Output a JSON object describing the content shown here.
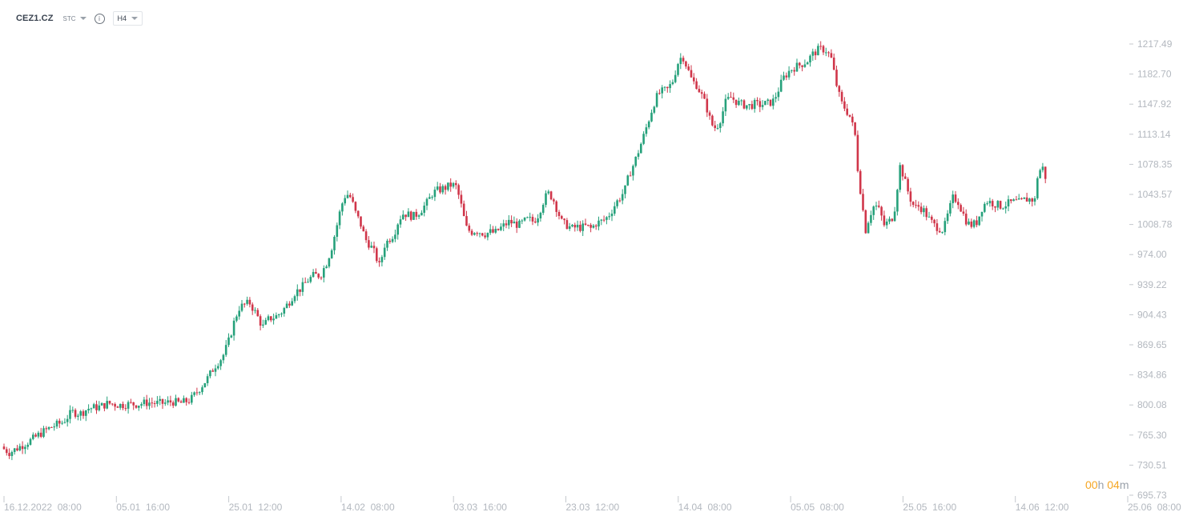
{
  "toolbar": {
    "symbol": "CEZ1.CZ",
    "mode": "STC",
    "timeframe": "H4"
  },
  "countdown": {
    "hours": "00",
    "h": "h",
    "minutes": "04",
    "m": "m"
  },
  "colors": {
    "up": "#26a17b",
    "down": "#d0364a",
    "axis_text": "#b3b8bf",
    "tick": "#c5c9ce"
  },
  "chart_data": {
    "type": "candlestick",
    "y_ticks": [
      "1217.49",
      "1182.70",
      "1147.92",
      "1113.14",
      "1078.35",
      "1043.57",
      "1008.78",
      "974.00",
      "939.22",
      "904.43",
      "869.65",
      "834.86",
      "800.08",
      "765.30",
      "730.51",
      "695.73"
    ],
    "ylim": [
      695.73,
      1217.49
    ],
    "x_ticks": [
      "16.12.2022  08:00",
      "05.01  16:00",
      "25.01  12:00",
      "14.02  08:00",
      "03.03  16:00",
      "23.03  12:00",
      "14.04  08:00",
      "05.05  08:00",
      "25.05  16:00",
      "14.06  12:00",
      "25.06  08:00"
    ],
    "close_path": [
      [
        0,
        752
      ],
      [
        12,
        745
      ],
      [
        25,
        752
      ],
      [
        40,
        760
      ],
      [
        52,
        768
      ],
      [
        65,
        775
      ],
      [
        78,
        780
      ],
      [
        90,
        792
      ],
      [
        100,
        790
      ],
      [
        110,
        796
      ],
      [
        125,
        798
      ],
      [
        135,
        802
      ],
      [
        150,
        800
      ],
      [
        160,
        801
      ],
      [
        172,
        801
      ],
      [
        185,
        803
      ],
      [
        195,
        802
      ],
      [
        205,
        802
      ],
      [
        215,
        804
      ],
      [
        225,
        802
      ],
      [
        238,
        806
      ],
      [
        250,
        820
      ],
      [
        260,
        832
      ],
      [
        268,
        845
      ],
      [
        278,
        856
      ],
      [
        285,
        872
      ],
      [
        292,
        895
      ],
      [
        298,
        912
      ],
      [
        305,
        916
      ],
      [
        312,
        918
      ],
      [
        320,
        905
      ],
      [
        328,
        890
      ],
      [
        336,
        900
      ],
      [
        344,
        902
      ],
      [
        352,
        908
      ],
      [
        360,
        918
      ],
      [
        368,
        930
      ],
      [
        376,
        935
      ],
      [
        384,
        944
      ],
      [
        392,
        950
      ],
      [
        400,
        950
      ],
      [
        408,
        965
      ],
      [
        414,
        982
      ],
      [
        420,
        1005
      ],
      [
        426,
        1030
      ],
      [
        432,
        1045
      ],
      [
        438,
        1040
      ],
      [
        444,
        1022
      ],
      [
        450,
        1010
      ],
      [
        456,
        992
      ],
      [
        462,
        985
      ],
      [
        468,
        975
      ],
      [
        474,
        960
      ],
      [
        480,
        985
      ],
      [
        486,
        992
      ],
      [
        492,
        998
      ],
      [
        498,
        1015
      ],
      [
        504,
        1022
      ],
      [
        510,
        1020
      ],
      [
        516,
        1018
      ],
      [
        522,
        1022
      ],
      [
        528,
        1028
      ],
      [
        534,
        1035
      ],
      [
        540,
        1045
      ],
      [
        546,
        1048
      ],
      [
        552,
        1050
      ],
      [
        558,
        1052
      ],
      [
        564,
        1055
      ],
      [
        570,
        1052
      ],
      [
        576,
        1030
      ],
      [
        582,
        1005
      ],
      [
        588,
        1000
      ],
      [
        594,
        1002
      ],
      [
        600,
        1000
      ],
      [
        606,
        998
      ],
      [
        612,
        1000
      ],
      [
        618,
        999
      ],
      [
        624,
        1004
      ],
      [
        630,
        1008
      ],
      [
        636,
        1012
      ],
      [
        642,
        1010
      ],
      [
        648,
        1008
      ],
      [
        654,
        1012
      ],
      [
        660,
        1015
      ],
      [
        666,
        1012
      ],
      [
        672,
        1020
      ],
      [
        678,
        1035
      ],
      [
        684,
        1045
      ],
      [
        690,
        1040
      ],
      [
        696,
        1025
      ],
      [
        702,
        1010
      ],
      [
        708,
        1008
      ],
      [
        714,
        1004
      ],
      [
        720,
        1006
      ],
      [
        726,
        1005
      ],
      [
        732,
        1007
      ],
      [
        738,
        1004
      ],
      [
        744,
        1010
      ],
      [
        750,
        1012
      ],
      [
        756,
        1015
      ],
      [
        762,
        1022
      ],
      [
        768,
        1032
      ],
      [
        774,
        1040
      ],
      [
        780,
        1048
      ],
      [
        786,
        1068
      ],
      [
        792,
        1080
      ],
      [
        798,
        1096
      ],
      [
        804,
        1112
      ],
      [
        810,
        1130
      ],
      [
        816,
        1148
      ],
      [
        822,
        1160
      ],
      [
        828,
        1163
      ],
      [
        834,
        1165
      ],
      [
        840,
        1175
      ],
      [
        846,
        1195
      ],
      [
        852,
        1205
      ],
      [
        858,
        1190
      ],
      [
        864,
        1175
      ],
      [
        870,
        1170
      ],
      [
        876,
        1158
      ],
      [
        882,
        1145
      ],
      [
        888,
        1125
      ],
      [
        894,
        1120
      ],
      [
        900,
        1132
      ],
      [
        906,
        1150
      ],
      [
        912,
        1156
      ],
      [
        918,
        1152
      ],
      [
        924,
        1148
      ],
      [
        930,
        1147
      ],
      [
        936,
        1146
      ],
      [
        942,
        1148
      ],
      [
        948,
        1147
      ],
      [
        954,
        1148
      ],
      [
        960,
        1149
      ],
      [
        966,
        1152
      ],
      [
        972,
        1165
      ],
      [
        978,
        1178
      ],
      [
        984,
        1185
      ],
      [
        990,
        1190
      ],
      [
        996,
        1192
      ],
      [
        1002,
        1195
      ],
      [
        1008,
        1198
      ],
      [
        1014,
        1205
      ],
      [
        1020,
        1210
      ],
      [
        1026,
        1212
      ],
      [
        1032,
        1210
      ],
      [
        1038,
        1200
      ],
      [
        1044,
        1172
      ],
      [
        1050,
        1150
      ],
      [
        1056,
        1142
      ],
      [
        1062,
        1132
      ],
      [
        1068,
        1110
      ],
      [
        1072,
        1060
      ],
      [
        1076,
        1040
      ],
      [
        1080,
        1000
      ],
      [
        1086,
        1020
      ],
      [
        1092,
        1032
      ],
      [
        1098,
        1025
      ],
      [
        1104,
        1008
      ],
      [
        1110,
        1012
      ],
      [
        1116,
        1020
      ],
      [
        1120,
        1050
      ],
      [
        1124,
        1078
      ],
      [
        1130,
        1058
      ],
      [
        1136,
        1040
      ],
      [
        1142,
        1028
      ],
      [
        1148,
        1030
      ],
      [
        1154,
        1024
      ],
      [
        1160,
        1015
      ],
      [
        1166,
        1008
      ],
      [
        1172,
        1005
      ],
      [
        1178,
        1002
      ],
      [
        1184,
        1022
      ],
      [
        1190,
        1040
      ],
      [
        1196,
        1036
      ],
      [
        1202,
        1022
      ],
      [
        1208,
        1010
      ],
      [
        1214,
        1008
      ],
      [
        1220,
        1012
      ],
      [
        1226,
        1028
      ],
      [
        1232,
        1036
      ],
      [
        1238,
        1034
      ],
      [
        1244,
        1032
      ],
      [
        1250,
        1030
      ],
      [
        1256,
        1032
      ],
      [
        1262,
        1034
      ],
      [
        1268,
        1035
      ],
      [
        1274,
        1034
      ],
      [
        1280,
        1038
      ],
      [
        1286,
        1038
      ],
      [
        1292,
        1037
      ],
      [
        1296,
        1070
      ],
      [
        1302,
        1074
      ],
      [
        1308,
        1055
      ]
    ]
  }
}
